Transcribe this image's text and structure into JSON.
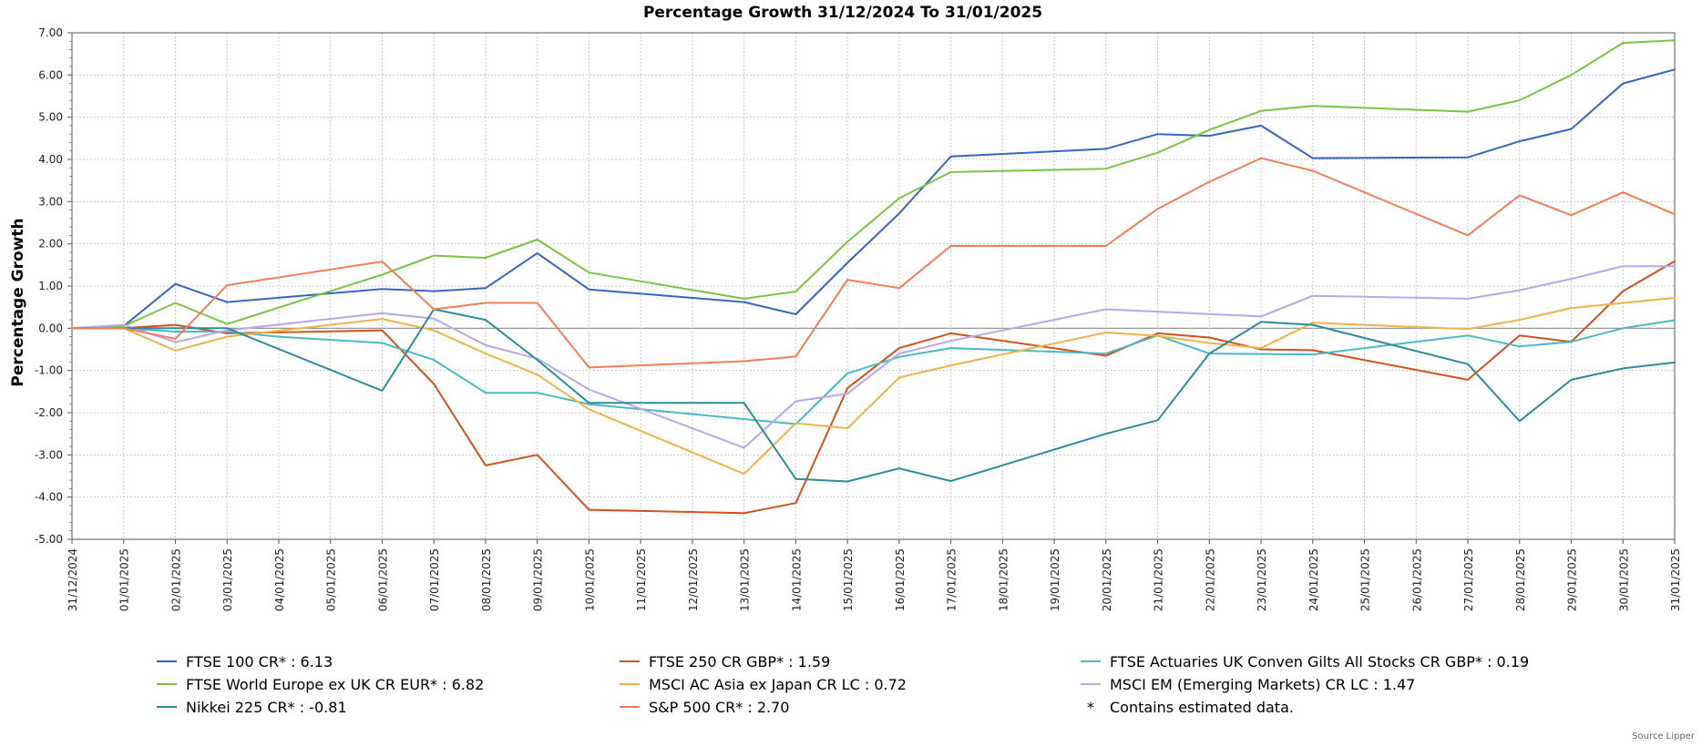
{
  "chart_data": {
    "type": "line",
    "title": "Percentage Growth 31/12/2024 To 31/01/2025",
    "ylabel": "Percentage Growth",
    "xlabel": "",
    "ylim": [
      -5,
      7
    ],
    "yticks": [
      "7.00",
      "6.00",
      "5.00",
      "4.00",
      "3.00",
      "2.00",
      "1.00",
      "0.00",
      "-1.00",
      "-2.00",
      "-3.00",
      "-4.00",
      "-5.00"
    ],
    "ytick_values": [
      7,
      6,
      5,
      4,
      3,
      2,
      1,
      0,
      -1,
      -2,
      -3,
      -4,
      -5
    ],
    "grid": true,
    "legend_position": "bottom",
    "categories": [
      "31/12/2024",
      "01/01/2025",
      "02/01/2025",
      "03/01/2025",
      "04/01/2025",
      "05/01/2025",
      "06/01/2025",
      "07/01/2025",
      "08/01/2025",
      "09/01/2025",
      "10/01/2025",
      "11/01/2025",
      "12/01/2025",
      "13/01/2025",
      "14/01/2025",
      "15/01/2025",
      "16/01/2025",
      "17/01/2025",
      "18/01/2025",
      "19/01/2025",
      "20/01/2025",
      "21/01/2025",
      "22/01/2025",
      "23/01/2025",
      "24/01/2025",
      "25/01/2025",
      "26/01/2025",
      "27/01/2025",
      "28/01/2025",
      "29/01/2025",
      "30/01/2025",
      "31/01/2025"
    ],
    "series": [
      {
        "name": "FTSE 100 CR* : 6.13",
        "color": "#3566c0",
        "points": [
          [
            0,
            0
          ],
          [
            1,
            0.05
          ],
          [
            2,
            1.05
          ],
          [
            3,
            0.62
          ],
          [
            6,
            0.93
          ],
          [
            7,
            0.88
          ],
          [
            8,
            0.95
          ],
          [
            9,
            1.78
          ],
          [
            10,
            0.92
          ],
          [
            13,
            0.62
          ],
          [
            14,
            0.33
          ],
          [
            15,
            1.55
          ],
          [
            16,
            2.72
          ],
          [
            17,
            4.07
          ],
          [
            20,
            4.25
          ],
          [
            21,
            4.6
          ],
          [
            22,
            4.56
          ],
          [
            23,
            4.8
          ],
          [
            24,
            4.03
          ],
          [
            27,
            4.05
          ],
          [
            28,
            4.43
          ],
          [
            29,
            4.72
          ],
          [
            30,
            5.8
          ],
          [
            31,
            6.13
          ]
        ]
      },
      {
        "name": "FTSE 250 CR GBP* : 1.59",
        "color": "#d2521c",
        "points": [
          [
            0,
            0
          ],
          [
            1,
            0
          ],
          [
            2,
            0.08
          ],
          [
            3,
            -0.12
          ],
          [
            6,
            -0.05
          ],
          [
            7,
            -1.32
          ],
          [
            8,
            -3.25
          ],
          [
            9,
            -3
          ],
          [
            10,
            -4.3
          ],
          [
            13,
            -4.38
          ],
          [
            14,
            -4.14
          ],
          [
            15,
            -1.42
          ],
          [
            16,
            -0.47
          ],
          [
            17,
            -0.12
          ],
          [
            20,
            -0.65
          ],
          [
            21,
            -0.12
          ],
          [
            22,
            -0.22
          ],
          [
            23,
            -0.5
          ],
          [
            24,
            -0.52
          ],
          [
            27,
            -1.22
          ],
          [
            28,
            -0.17
          ],
          [
            29,
            -0.32
          ],
          [
            30,
            0.88
          ],
          [
            31,
            1.59
          ]
        ]
      },
      {
        "name": "FTSE Actuaries UK Conven Gilts All Stocks CR GBP* : 0.19",
        "color": "#4ab9c4",
        "points": [
          [
            0,
            0
          ],
          [
            1,
            0
          ],
          [
            2,
            -0.08
          ],
          [
            3,
            -0.08
          ],
          [
            4,
            -0.2
          ],
          [
            6,
            -0.35
          ],
          [
            7,
            -0.75
          ],
          [
            8,
            -1.53
          ],
          [
            9,
            -1.53
          ],
          [
            10,
            -1.8
          ],
          [
            14,
            -2.27
          ],
          [
            15,
            -1.07
          ],
          [
            16,
            -0.68
          ],
          [
            17,
            -0.47
          ],
          [
            20,
            -0.6
          ],
          [
            21,
            -0.17
          ],
          [
            22,
            -0.6
          ],
          [
            24,
            -0.62
          ],
          [
            27,
            -0.17
          ],
          [
            28,
            -0.43
          ],
          [
            29,
            -0.32
          ],
          [
            30,
            0
          ],
          [
            31,
            0.19
          ]
        ]
      },
      {
        "name": "FTSE World Europe ex UK CR EUR* : 6.82",
        "color": "#78c545",
        "points": [
          [
            0,
            0
          ],
          [
            1,
            0.05
          ],
          [
            2,
            0.6
          ],
          [
            3,
            0.1
          ],
          [
            6,
            1.27
          ],
          [
            7,
            1.72
          ],
          [
            8,
            1.67
          ],
          [
            9,
            2.1
          ],
          [
            10,
            1.32
          ],
          [
            13,
            0.7
          ],
          [
            14,
            0.87
          ],
          [
            15,
            2.05
          ],
          [
            16,
            3.08
          ],
          [
            17,
            3.7
          ],
          [
            20,
            3.78
          ],
          [
            21,
            4.16
          ],
          [
            22,
            4.7
          ],
          [
            23,
            5.15
          ],
          [
            24,
            5.27
          ],
          [
            27,
            5.13
          ],
          [
            28,
            5.4
          ],
          [
            29,
            6
          ],
          [
            30,
            6.76
          ],
          [
            31,
            6.82
          ]
        ]
      },
      {
        "name": "MSCI AC Asia ex Japan CR LC : 0.72",
        "color": "#f0b24a",
        "points": [
          [
            0,
            0
          ],
          [
            1,
            0
          ],
          [
            2,
            -0.53
          ],
          [
            3,
            -0.2
          ],
          [
            6,
            0.22
          ],
          [
            7,
            -0.05
          ],
          [
            8,
            -0.6
          ],
          [
            9,
            -1.1
          ],
          [
            10,
            -1.92
          ],
          [
            13,
            -3.45
          ],
          [
            14,
            -2.25
          ],
          [
            15,
            -2.37
          ],
          [
            16,
            -1.17
          ],
          [
            17,
            -0.88
          ],
          [
            20,
            -0.1
          ],
          [
            21,
            -0.18
          ],
          [
            22,
            -0.35
          ],
          [
            23,
            -0.47
          ],
          [
            24,
            0.13
          ],
          [
            27,
            -0.02
          ],
          [
            28,
            0.2
          ],
          [
            29,
            0.48
          ],
          [
            30,
            0.6
          ],
          [
            31,
            0.72
          ]
        ]
      },
      {
        "name": "MSCI EM (Emerging Markets) CR LC : 1.47",
        "color": "#b9a7ec",
        "points": [
          [
            0,
            0
          ],
          [
            1,
            0.08
          ],
          [
            2,
            -0.33
          ],
          [
            3,
            -0.05
          ],
          [
            6,
            0.36
          ],
          [
            7,
            0.23
          ],
          [
            8,
            -0.4
          ],
          [
            9,
            -0.72
          ],
          [
            10,
            -1.45
          ],
          [
            13,
            -2.83
          ],
          [
            14,
            -1.73
          ],
          [
            15,
            -1.55
          ],
          [
            16,
            -0.6
          ],
          [
            17,
            -0.3
          ],
          [
            20,
            0.45
          ],
          [
            23,
            0.28
          ],
          [
            24,
            0.77
          ],
          [
            27,
            0.7
          ],
          [
            28,
            0.9
          ],
          [
            29,
            1.17
          ],
          [
            30,
            1.47
          ],
          [
            31,
            1.47
          ]
        ]
      },
      {
        "name": "Nikkei 225 CR* : -0.81",
        "color": "#2d8c9c",
        "points": [
          [
            0,
            0
          ],
          [
            1,
            0
          ],
          [
            2,
            0
          ],
          [
            3,
            0
          ],
          [
            6,
            -1.48
          ],
          [
            7,
            0.45
          ],
          [
            8,
            0.2
          ],
          [
            9,
            -0.75
          ],
          [
            10,
            -1.77
          ],
          [
            13,
            -1.77
          ],
          [
            14,
            -3.57
          ],
          [
            15,
            -3.63
          ],
          [
            16,
            -3.32
          ],
          [
            17,
            -3.62
          ],
          [
            20,
            -2.5
          ],
          [
            21,
            -2.18
          ],
          [
            22,
            -0.6
          ],
          [
            23,
            0.15
          ],
          [
            24,
            0.08
          ],
          [
            27,
            -0.85
          ],
          [
            28,
            -2.2
          ],
          [
            29,
            -1.22
          ],
          [
            30,
            -0.95
          ],
          [
            31,
            -0.81
          ]
        ]
      },
      {
        "name": "S&P 500 CR* : 2.70",
        "color": "#f57d56",
        "points": [
          [
            0,
            0
          ],
          [
            1,
            0
          ],
          [
            2,
            -0.25
          ],
          [
            3,
            1.02
          ],
          [
            6,
            1.58
          ],
          [
            7,
            0.45
          ],
          [
            8,
            0.6
          ],
          [
            9,
            0.6
          ],
          [
            10,
            -0.93
          ],
          [
            13,
            -0.78
          ],
          [
            14,
            -0.67
          ],
          [
            15,
            1.15
          ],
          [
            16,
            0.95
          ],
          [
            17,
            1.95
          ],
          [
            20,
            1.95
          ],
          [
            21,
            2.83
          ],
          [
            22,
            3.47
          ],
          [
            23,
            4.03
          ],
          [
            24,
            3.73
          ],
          [
            27,
            2.2
          ],
          [
            28,
            3.15
          ],
          [
            29,
            2.68
          ],
          [
            30,
            3.22
          ],
          [
            31,
            2.7
          ]
        ]
      }
    ]
  },
  "legend": {
    "items": [
      {
        "label": "FTSE 100 CR* : 6.13",
        "color": "#3566c0"
      },
      {
        "label": "FTSE 250 CR GBP* : 1.59",
        "color": "#d2521c"
      },
      {
        "label": "FTSE Actuaries UK Conven Gilts All Stocks CR GBP* : 0.19",
        "color": "#4ab9c4"
      },
      {
        "label": "FTSE World Europe ex UK CR EUR* : 6.82",
        "color": "#78c545"
      },
      {
        "label": "MSCI AC Asia ex Japan CR LC : 0.72",
        "color": "#f0b24a"
      },
      {
        "label": "MSCI EM (Emerging Markets) CR LC : 1.47",
        "color": "#b9a7ec"
      },
      {
        "label": "Nikkei 225 CR* : -0.81",
        "color": "#2d8c9c"
      },
      {
        "label": "S&P 500 CR* : 2.70",
        "color": "#f57d56"
      }
    ],
    "note_star": "*",
    "note_text": "Contains estimated data."
  },
  "source": "Source Lipper"
}
